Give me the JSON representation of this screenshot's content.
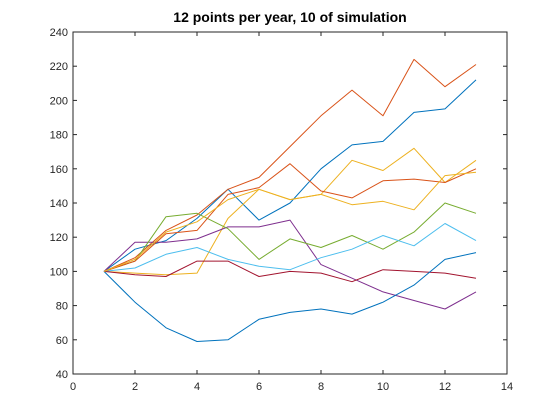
{
  "chart_data": {
    "type": "line",
    "title": "12 points per year, 10 of simulation",
    "xlabel": "",
    "ylabel": "",
    "xlim": [
      0,
      14
    ],
    "ylim": [
      40,
      240
    ],
    "xticks": [
      0,
      2,
      4,
      6,
      8,
      10,
      12,
      14
    ],
    "yticks": [
      40,
      60,
      80,
      100,
      120,
      140,
      160,
      180,
      200,
      220,
      240
    ],
    "grid": false,
    "legend": "none",
    "x": [
      1,
      2,
      3,
      4,
      5,
      6,
      7,
      8,
      9,
      10,
      11,
      12,
      13
    ],
    "series": [
      {
        "color": "#0072BD",
        "values": [
          100,
          113,
          118,
          131,
          148,
          130,
          140,
          160,
          174,
          176,
          193,
          195,
          212
        ]
      },
      {
        "color": "#D95319",
        "values": [
          100,
          108,
          124,
          133,
          148,
          155,
          173,
          191,
          206,
          191,
          224,
          208,
          221
        ]
      },
      {
        "color": "#EDB120",
        "values": [
          100,
          99,
          98,
          99,
          131,
          148,
          142,
          145,
          165,
          159,
          172,
          152,
          165
        ]
      },
      {
        "color": "#7E2F8E",
        "values": [
          100,
          117,
          117,
          119,
          126,
          126,
          130,
          104,
          96,
          88,
          83,
          78,
          88
        ]
      },
      {
        "color": "#77AC30",
        "values": [
          100,
          106,
          132,
          134,
          125,
          107,
          119,
          114,
          121,
          113,
          123,
          140,
          134
        ]
      },
      {
        "color": "#4DBEEE",
        "values": [
          100,
          102,
          110,
          114,
          107,
          103,
          101,
          108,
          113,
          121,
          115,
          128,
          118
        ]
      },
      {
        "color": "#A2142F",
        "values": [
          100,
          98,
          97,
          106,
          106,
          97,
          100,
          99,
          94,
          101,
          100,
          99,
          96
        ]
      },
      {
        "color": "#0072BD",
        "values": [
          100,
          82,
          67,
          59,
          60,
          72,
          76,
          78,
          75,
          82,
          92,
          107,
          111
        ]
      },
      {
        "color": "#D95319",
        "values": [
          100,
          106,
          122,
          124,
          145,
          149,
          163,
          147,
          143,
          153,
          154,
          152,
          160
        ]
      },
      {
        "color": "#EDB120",
        "values": [
          100,
          107,
          123,
          129,
          142,
          148,
          142,
          145,
          139,
          141,
          136,
          156,
          158
        ]
      }
    ]
  }
}
